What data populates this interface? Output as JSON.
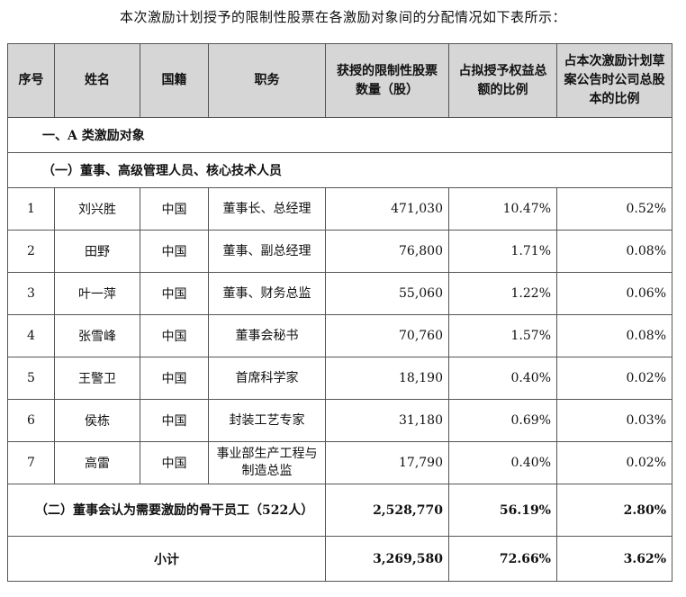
{
  "intro": "本次激励计划授予的限制性股票在各激励对象间的分配情况如下表所示：",
  "headers": {
    "no": "序号",
    "name": "姓名",
    "nationality": "国籍",
    "position": "职务",
    "shares": "获授的限制性股票数量（股）",
    "ratio_grant": "占拟授予权益总额的比例",
    "ratio_total": "占本次激励计划草案公告时公司总股本的比例"
  },
  "section_a": "一、A 类激励对象",
  "subsection_1": "（一）董事、高级管理人员、核心技术人员",
  "rows": [
    {
      "no": "1",
      "name": "刘兴胜",
      "nationality": "中国",
      "position": "董事长、总经理",
      "shares": "471,030",
      "ratio_grant": "10.47%",
      "ratio_total": "0.52%"
    },
    {
      "no": "2",
      "name": "田野",
      "nationality": "中国",
      "position": "董事、副总经理",
      "shares": "76,800",
      "ratio_grant": "1.71%",
      "ratio_total": "0.08%"
    },
    {
      "no": "3",
      "name": "叶一萍",
      "nationality": "中国",
      "position": "董事、财务总监",
      "shares": "55,060",
      "ratio_grant": "1.22%",
      "ratio_total": "0.06%"
    },
    {
      "no": "4",
      "name": "张雪峰",
      "nationality": "中国",
      "position": "董事会秘书",
      "shares": "70,760",
      "ratio_grant": "1.57%",
      "ratio_total": "0.08%"
    },
    {
      "no": "5",
      "name": "王警卫",
      "nationality": "中国",
      "position": "首席科学家",
      "shares": "18,190",
      "ratio_grant": "0.40%",
      "ratio_total": "0.02%"
    },
    {
      "no": "6",
      "name": "侯栋",
      "nationality": "中国",
      "position": "封装工艺专家",
      "shares": "31,180",
      "ratio_grant": "0.69%",
      "ratio_total": "0.03%"
    },
    {
      "no": "7",
      "name": "高雷",
      "nationality": "中国",
      "position": "事业部生产工程与制造总监",
      "shares": "17,790",
      "ratio_grant": "0.40%",
      "ratio_total": "0.02%"
    }
  ],
  "group2": {
    "label": "（二）董事会认为需要激励的骨干员工（522人）",
    "shares": "2,528,770",
    "ratio_grant": "56.19%",
    "ratio_total": "2.80%"
  },
  "subtotal": {
    "label": "小计",
    "shares": "3,269,580",
    "ratio_grant": "72.66%",
    "ratio_total": "3.62%"
  }
}
